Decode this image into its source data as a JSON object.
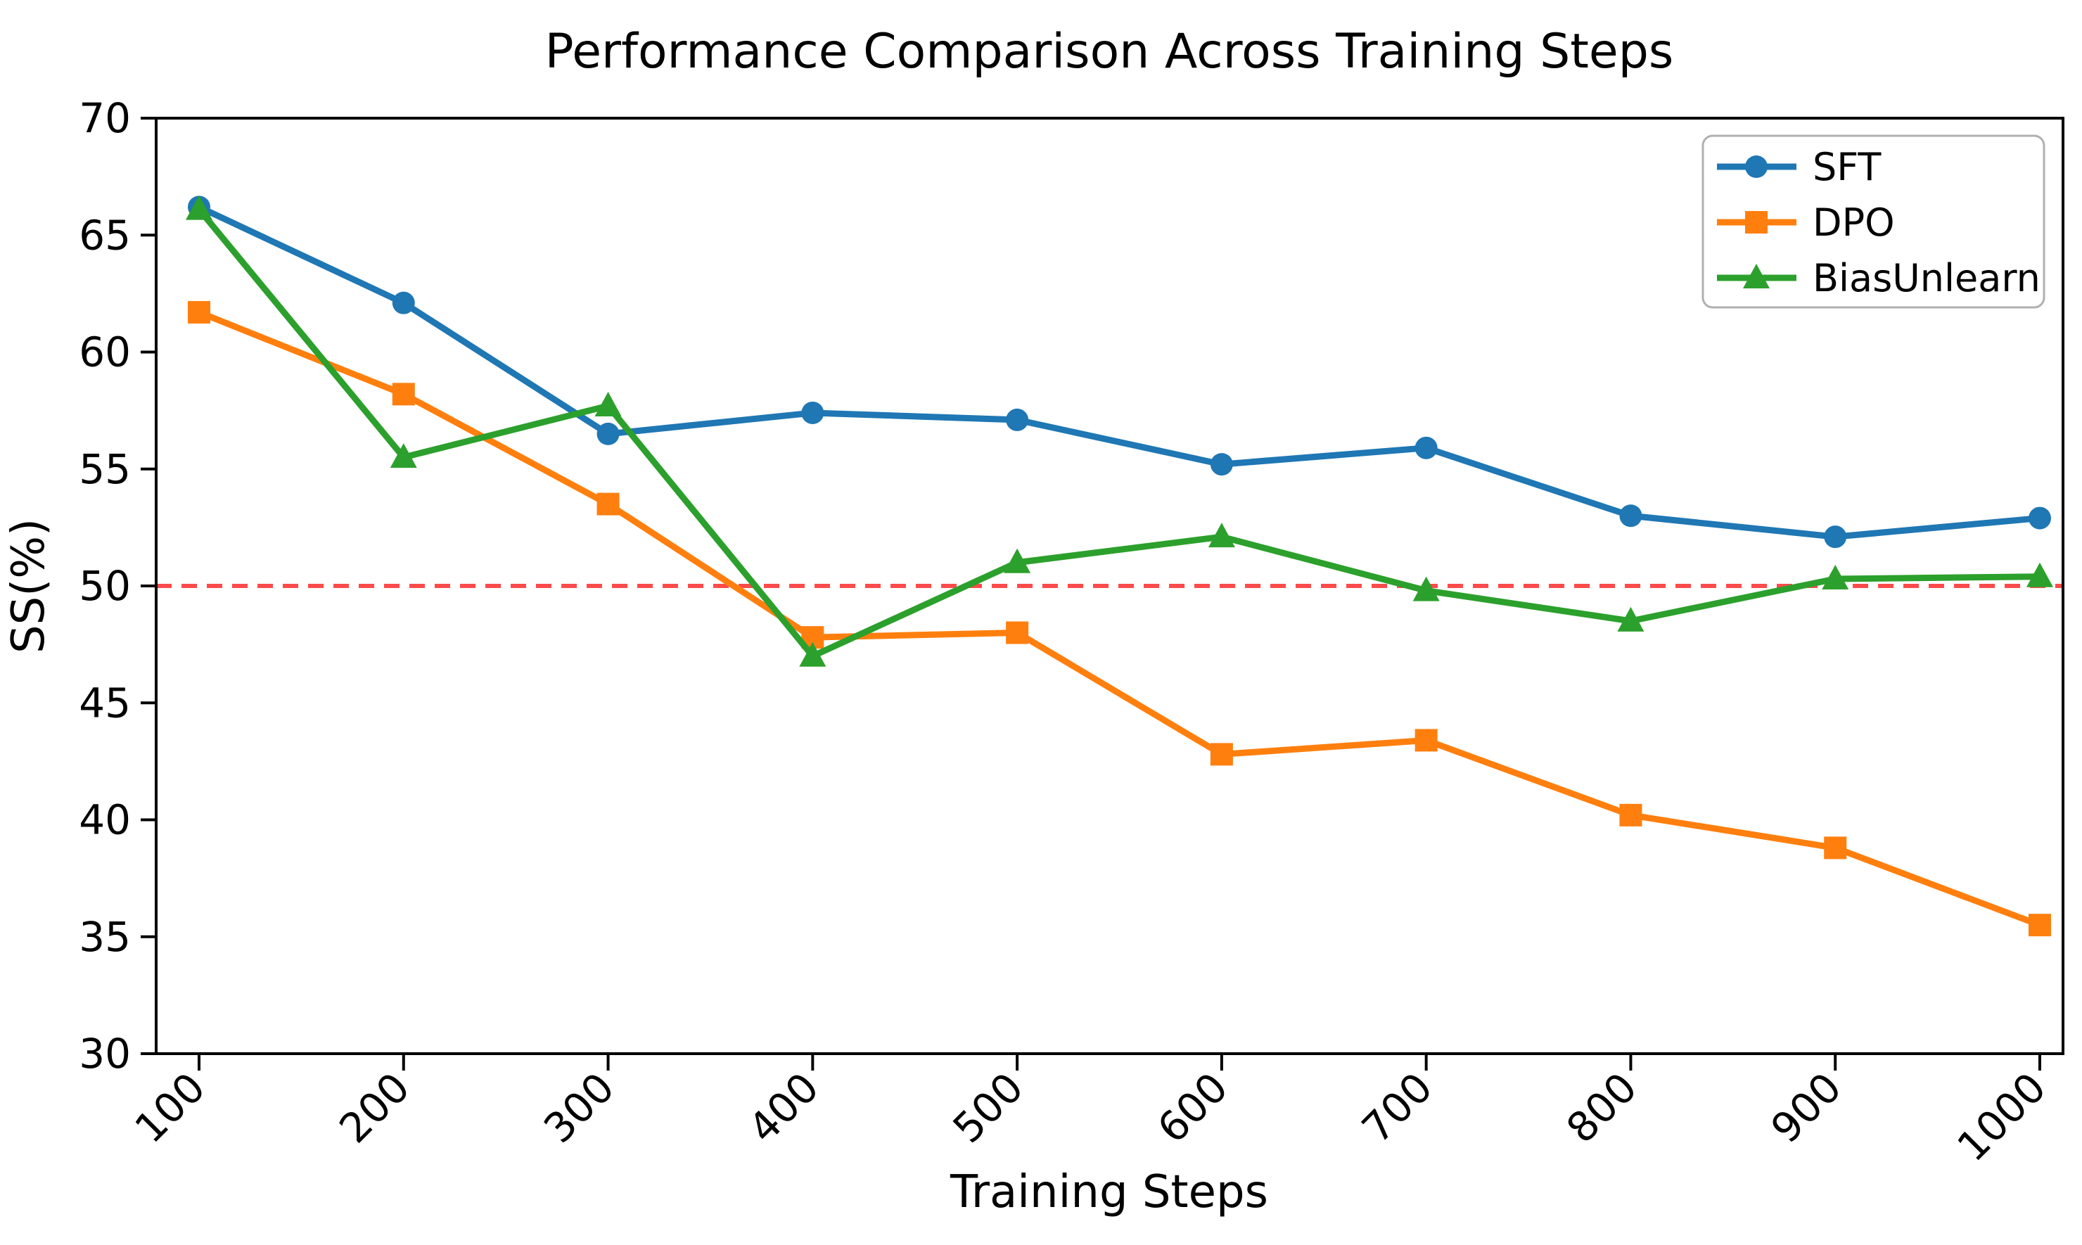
{
  "chart_data": {
    "type": "line",
    "title": "Performance Comparison Across Training Steps",
    "xlabel": "Training Steps",
    "ylabel": "SS(%)",
    "ylim": [
      30,
      70
    ],
    "yticks": [
      30,
      35,
      40,
      45,
      50,
      55,
      60,
      65,
      70
    ],
    "categories": [
      100,
      200,
      300,
      400,
      500,
      600,
      700,
      800,
      900,
      1000
    ],
    "grid": "off",
    "legend_position": "top-right",
    "series": [
      {
        "name": "SFT",
        "color": "#1f77b4",
        "marker": "circle",
        "values": [
          66.2,
          62.1,
          56.5,
          57.4,
          57.1,
          55.2,
          55.9,
          53.0,
          52.1,
          52.9
        ]
      },
      {
        "name": "DPO",
        "color": "#ff7f0e",
        "marker": "square",
        "values": [
          61.7,
          58.2,
          53.5,
          47.8,
          48.0,
          42.8,
          43.4,
          40.2,
          38.8,
          35.5
        ]
      },
      {
        "name": "BiasUnlearn",
        "color": "#2ca02c",
        "marker": "triangle",
        "values": [
          66.1,
          55.5,
          57.7,
          47.0,
          51.0,
          52.1,
          49.8,
          48.5,
          50.3,
          50.4
        ]
      }
    ],
    "reference_line": {
      "y": 50,
      "color": "#fc4b4b",
      "style": "dashed"
    },
    "colors": {
      "axis": "#000000",
      "legend_border": "#b0b0b0",
      "background": "#ffffff"
    }
  }
}
